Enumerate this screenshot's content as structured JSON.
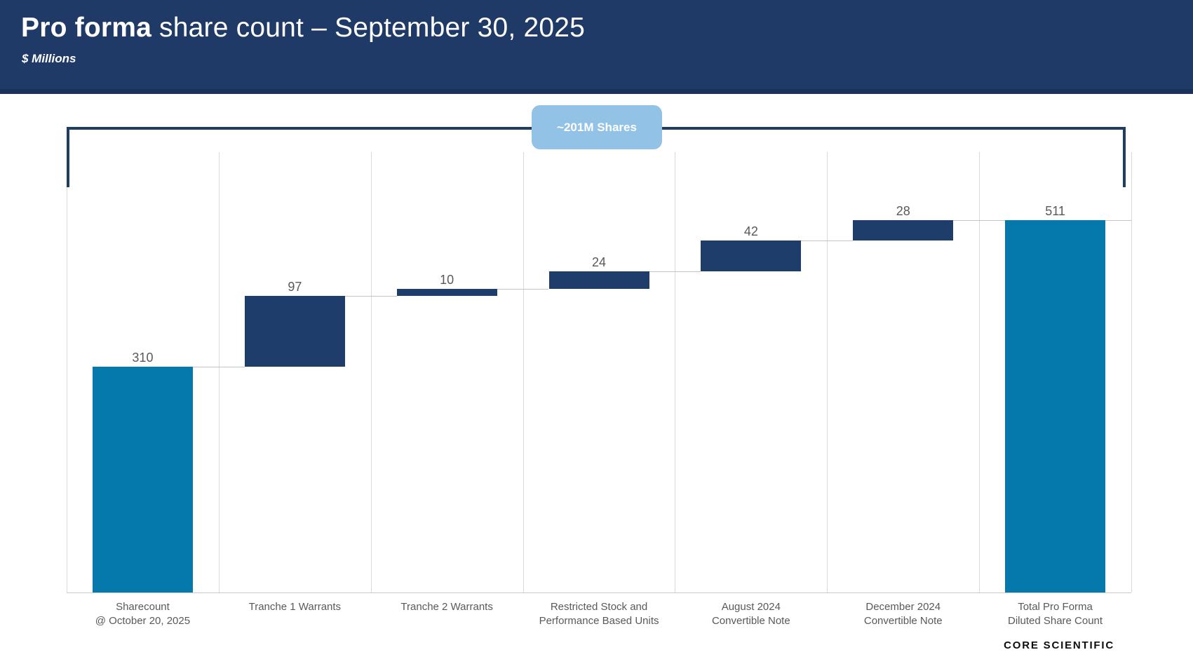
{
  "header": {
    "title_bold": "Pro forma",
    "title_rest": " share count – September 30, 2025",
    "subtitle": "$ Millions"
  },
  "annotation": {
    "label": "~201M Shares"
  },
  "logo": {
    "text": "CORE SCIENTIFIC"
  },
  "chart_data": {
    "type": "bar",
    "subtype": "waterfall",
    "title": "Pro forma share count – September 30, 2025",
    "units_label": "$ Millions",
    "categories": [
      "Sharecount\n@ October 20, 2025",
      "Tranche 1 Warrants",
      "Tranche 2 Warrants",
      "Restricted Stock and\nPerformance Based Units",
      "August 2024\nConvertible Note",
      "December 2024\nConvertible Note",
      "Total Pro Forma\nDiluted Share Count"
    ],
    "values": [
      310,
      97,
      10,
      24,
      42,
      28,
      511
    ],
    "bar_kinds": [
      "total",
      "delta",
      "delta",
      "delta",
      "delta",
      "delta",
      "total"
    ],
    "cumulative": [
      310,
      407,
      417,
      441,
      483,
      511,
      511
    ],
    "annotation": "~201M Shares",
    "annotation_sum_of_deltas": 201,
    "ylim": [
      0,
      540
    ],
    "grid": "vertical-only",
    "legend": false,
    "colors": {
      "total_bar": "#0679AC",
      "delta_bar": "#1F3D6B",
      "gridline": "#D9D9D9",
      "connector": "#C4C4C4",
      "label": "#595959",
      "header_bg": "#1F3A66",
      "badge_bg": "#92C2E6",
      "bracket": "#1E3F63"
    }
  }
}
